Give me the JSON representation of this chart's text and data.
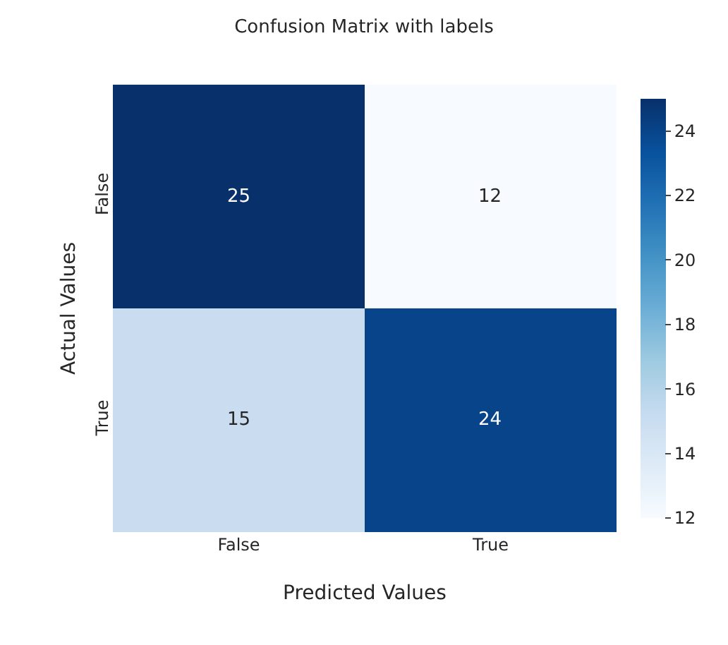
{
  "chart_data": {
    "type": "heatmap",
    "title": "Confusion Matrix with labels",
    "xlabel": "Predicted Values",
    "ylabel": "Actual Values",
    "categories": [
      "False",
      "True"
    ],
    "y_categories": [
      "False",
      "True"
    ],
    "cells": [
      [
        25,
        12
      ],
      [
        15,
        24
      ]
    ],
    "clim": [
      12,
      25
    ],
    "cticks": [
      12,
      14,
      16,
      18,
      20,
      22,
      24
    ],
    "data_labels": true
  }
}
